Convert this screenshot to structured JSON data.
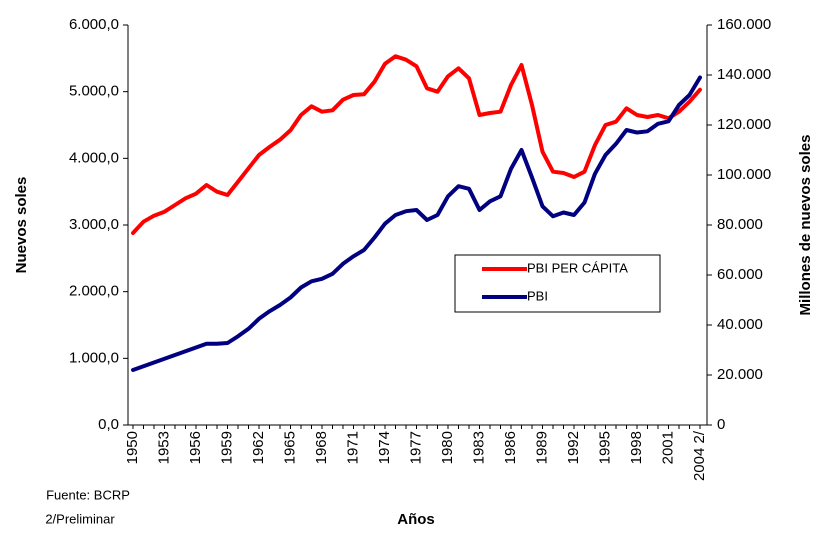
{
  "chart_data": {
    "type": "line",
    "y_label": "Nuevos soles",
    "y2_label": "Millones de nuevos soles",
    "x_label": "Años",
    "notes": [
      "Fuente: BCRP",
      "2/Preliminar"
    ],
    "categories": [
      "1950",
      null,
      null,
      "1953",
      null,
      null,
      "1956",
      null,
      null,
      "1959",
      null,
      null,
      "1962",
      null,
      null,
      "1965",
      null,
      null,
      "1968",
      null,
      null,
      "1971",
      null,
      null,
      "1974",
      null,
      null,
      "1977",
      null,
      null,
      "1980",
      null,
      null,
      "1983",
      null,
      null,
      "1986",
      null,
      null,
      "1989",
      null,
      null,
      "1992",
      null,
      null,
      "1995",
      null,
      null,
      "1998",
      null,
      null,
      "2001",
      null,
      null,
      "2004 2/"
    ],
    "series": [
      {
        "name": "PBI PER CÁPITA",
        "color": "#ff0000",
        "axis": "y",
        "values": [
          2880,
          3050,
          3140,
          3200,
          3300,
          3400,
          3470,
          3600,
          3500,
          3450,
          3650,
          3850,
          4050,
          4170,
          4280,
          4420,
          4650,
          4780,
          4700,
          4720,
          4880,
          4950,
          4960,
          5150,
          5420,
          5530,
          5480,
          5380,
          5050,
          5000,
          5230,
          5350,
          5200,
          4650,
          4680,
          4700,
          5100,
          5400,
          4800,
          4100,
          3800,
          3780,
          3720,
          3800,
          4200,
          4500,
          4550,
          4750,
          4650,
          4620,
          4650,
          4600,
          4700,
          4850,
          5030
        ]
      },
      {
        "name": "PBI",
        "color": "#000080",
        "axis": "y2",
        "values": [
          22000,
          23500,
          25000,
          26500,
          28000,
          29500,
          31000,
          32500,
          32500,
          32800,
          35500,
          38500,
          42500,
          45500,
          48000,
          51000,
          55000,
          57500,
          58500,
          60500,
          64500,
          67500,
          70000,
          75000,
          80500,
          84000,
          85500,
          86000,
          82000,
          84000,
          91500,
          95500,
          94500,
          86000,
          89500,
          91500,
          102500,
          110000,
          99000,
          87500,
          83500,
          85000,
          84000,
          89000,
          100500,
          108000,
          112500,
          118000,
          117000,
          117500,
          120500,
          121500,
          128000,
          132000,
          139000
        ]
      }
    ],
    "ylim": [
      0,
      6000
    ],
    "yticks": [
      {
        "value": 0,
        "label": "0,0"
      },
      {
        "value": 1000,
        "label": "1.000,0"
      },
      {
        "value": 2000,
        "label": "2.000,0"
      },
      {
        "value": 3000,
        "label": "3.000,0"
      },
      {
        "value": 4000,
        "label": "4.000,0"
      },
      {
        "value": 5000,
        "label": "5.000,0"
      },
      {
        "value": 6000,
        "label": "6.000,0"
      }
    ],
    "y2lim": [
      0,
      160000
    ],
    "y2ticks": [
      0,
      {
        "value": 20000,
        "label": "20.000"
      },
      {
        "value": 40000,
        "label": "40.000"
      },
      {
        "value": 60000,
        "label": "60.000"
      },
      {
        "value": 80000,
        "label": "80.000"
      },
      {
        "value": 100000,
        "label": "100.000"
      },
      {
        "value": 120000,
        "label": "120.000"
      },
      {
        "value": 140000,
        "label": "140.000"
      },
      {
        "value": 160000,
        "label": "160.000"
      }
    ],
    "grid": false
  }
}
